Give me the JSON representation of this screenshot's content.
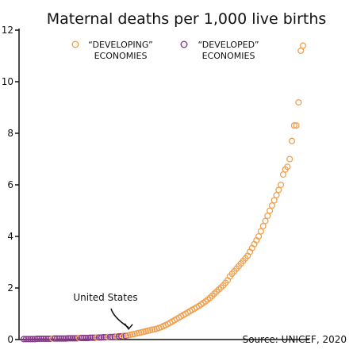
{
  "chart_data": {
    "type": "scatter",
    "title": "Maternal deaths per 1,000 live births",
    "xlabel": "",
    "ylabel": "",
    "ylim": [
      0,
      12
    ],
    "yticks": [
      0,
      2,
      4,
      6,
      8,
      10,
      12
    ],
    "grid": false,
    "legend_position": "top-center",
    "source": "Source: UNICEF, 2020",
    "series": [
      {
        "name": "“DEVELOPING” ECONOMIES",
        "legend_lines": [
          "“DEVELOPING”",
          "ECONOMIES"
        ],
        "color": "#f0a050",
        "values": [
          0.04,
          0.06,
          0.08,
          0.1,
          0.12,
          0.14,
          0.16,
          0.18,
          0.2,
          0.22,
          0.24,
          0.26,
          0.28,
          0.3,
          0.32,
          0.34,
          0.36,
          0.38,
          0.4,
          0.42,
          0.45,
          0.48,
          0.52,
          0.56,
          0.6,
          0.65,
          0.7,
          0.75,
          0.8,
          0.85,
          0.9,
          0.95,
          1.0,
          1.05,
          1.1,
          1.15,
          1.2,
          1.25,
          1.3,
          1.36,
          1.42,
          1.48,
          1.55,
          1.62,
          1.7,
          1.78,
          1.86,
          1.94,
          2.02,
          2.1,
          2.2,
          2.3,
          2.45,
          2.55,
          2.65,
          2.75,
          2.85,
          2.95,
          3.05,
          3.15,
          3.25,
          3.4,
          3.55,
          3.7,
          3.85,
          4.0,
          4.2,
          4.4,
          4.6,
          4.8,
          5.0,
          5.2,
          5.4,
          5.6,
          5.8,
          6.0,
          6.4,
          6.6,
          6.7,
          7.0,
          7.7,
          8.3,
          8.3,
          9.2,
          11.2,
          11.4
        ]
      },
      {
        "name": "“DEVELOPED” ECONOMIES",
        "legend_lines": [
          "“DEVELOPED”",
          "ECONOMIES"
        ],
        "color": "#8a3a8c",
        "values": [
          0.02,
          0.02,
          0.02,
          0.02,
          0.02,
          0.02,
          0.03,
          0.03,
          0.03,
          0.03,
          0.03,
          0.03,
          0.03,
          0.04,
          0.04,
          0.04,
          0.04,
          0.04,
          0.04,
          0.05,
          0.05,
          0.05,
          0.05,
          0.05,
          0.06,
          0.06,
          0.06,
          0.06,
          0.07,
          0.07,
          0.07,
          0.08,
          0.08,
          0.09,
          0.09,
          0.1,
          0.1,
          0.11,
          0.12,
          0.13,
          0.14
        ]
      }
    ],
    "annotations": [
      {
        "text": "United States",
        "value": 0.19
      }
    ]
  }
}
